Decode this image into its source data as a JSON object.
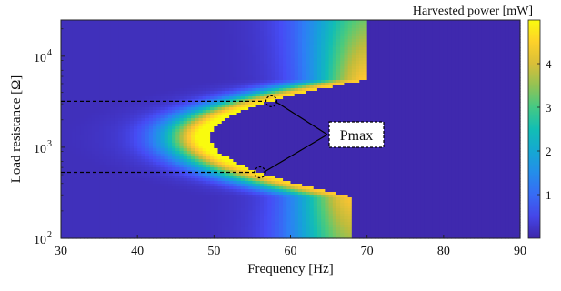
{
  "chart_data": {
    "type": "heatmap",
    "title": "",
    "xlabel": "Frequency [Hz]",
    "ylabel": "Load resistance [Ω]",
    "colorbar_label": "Harvested power [mW]",
    "xlim": [
      30,
      90
    ],
    "ylim": [
      100,
      25000
    ],
    "yscale": "log",
    "x_ticks": [
      30,
      40,
      50,
      60,
      70,
      80,
      90
    ],
    "y_ticks": [
      {
        "value": 100,
        "base": "10",
        "exp": "2"
      },
      {
        "value": 1000,
        "base": "10",
        "exp": "3"
      },
      {
        "value": 10000,
        "base": "10",
        "exp": "4"
      }
    ],
    "colorbar_ticks": [
      1,
      2,
      3,
      4
    ],
    "colorbar_range": [
      0,
      5
    ],
    "colormap": "parula",
    "ridge": {
      "description_points": [
        {
          "frequency": 49.5,
          "resistance": 1300
        },
        {
          "frequency": 57.5,
          "resistance": 3200
        },
        {
          "frequency": 56,
          "resistance": 530
        },
        {
          "frequency": 68,
          "resistance": 100
        },
        {
          "frequency": 70,
          "resistance": 25000
        }
      ],
      "peak_power": 4.9
    },
    "annotations": [
      {
        "label": "Pmax",
        "frequency": 57.5,
        "resistance": 3200
      },
      {
        "label": "Pmax",
        "frequency": 56,
        "resistance": 530
      }
    ],
    "grid": false
  }
}
